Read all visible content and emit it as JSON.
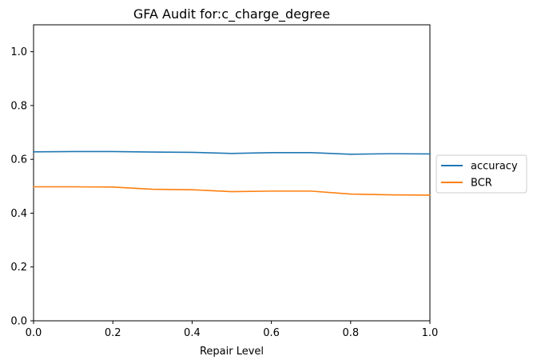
{
  "chart_data": {
    "type": "line",
    "title": "GFA Audit for:c_charge_degree",
    "xlabel": "Repair Level",
    "ylabel": "",
    "xlim": [
      0.0,
      1.0
    ],
    "ylim": [
      0.0,
      1.1
    ],
    "xticks": [
      "0.0",
      "0.2",
      "0.4",
      "0.6",
      "0.8",
      "1.0"
    ],
    "yticks": [
      "0.0",
      "0.2",
      "0.4",
      "0.6",
      "0.8",
      "1.0"
    ],
    "grid": false,
    "legend_position": "outside-right",
    "x": [
      0.0,
      0.1,
      0.2,
      0.3,
      0.4,
      0.5,
      0.6,
      0.7,
      0.8,
      0.9,
      1.0
    ],
    "series": [
      {
        "name": "accuracy",
        "color": "#1f77b4",
        "values": [
          0.628,
          0.629,
          0.629,
          0.627,
          0.626,
          0.622,
          0.625,
          0.625,
          0.619,
          0.621,
          0.62
        ]
      },
      {
        "name": "BCR",
        "color": "#ff7f0e",
        "values": [
          0.498,
          0.498,
          0.497,
          0.489,
          0.487,
          0.48,
          0.482,
          0.482,
          0.471,
          0.468,
          0.467
        ]
      }
    ]
  }
}
